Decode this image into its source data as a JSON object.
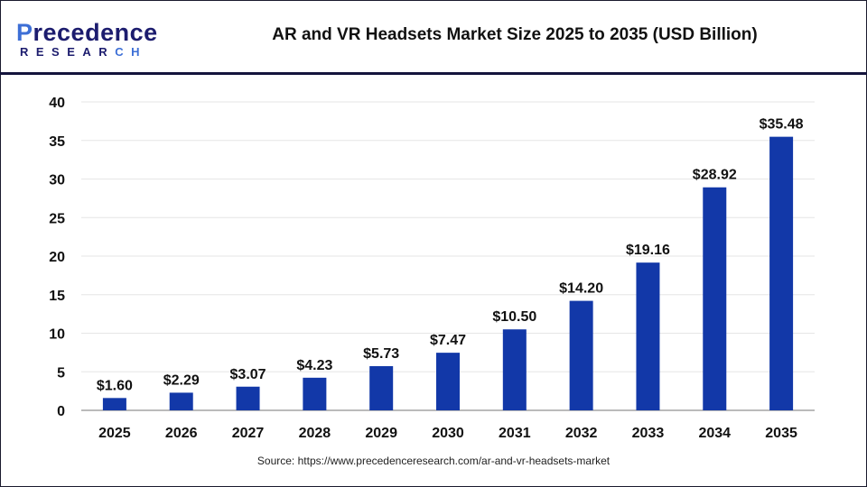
{
  "logo": {
    "text": "Precedence",
    "subtext": "RESEARCH"
  },
  "chart_data": {
    "type": "bar",
    "title": "AR and VR Headsets Market Size 2025 to 2035 (USD Billion)",
    "categories": [
      "2025",
      "2026",
      "2027",
      "2028",
      "2029",
      "2030",
      "2031",
      "2032",
      "2033",
      "2034",
      "2035"
    ],
    "values": [
      1.6,
      2.29,
      3.07,
      4.23,
      5.73,
      7.47,
      10.5,
      14.2,
      19.16,
      28.92,
      35.48
    ],
    "data_labels": [
      "$1.60",
      "$2.29",
      "$3.07",
      "$4.23",
      "$5.73",
      "$7.47",
      "$10.50",
      "$14.20",
      "$19.16",
      "$28.92",
      "$35.48"
    ],
    "ylim": [
      0,
      40
    ],
    "yticks": [
      0,
      5,
      10,
      15,
      20,
      25,
      30,
      35,
      40
    ],
    "grid": true,
    "bar_color": "#1238a8",
    "xlabel": "",
    "ylabel": ""
  },
  "source": "Source: https://www.precedenceresearch.com/ar-and-vr-headsets-market"
}
